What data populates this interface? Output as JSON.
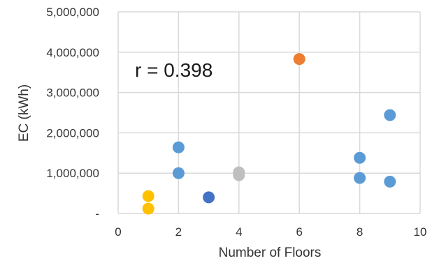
{
  "chart_data": {
    "type": "scatter",
    "title": "",
    "xlabel": "Number of Floors",
    "ylabel": "EC (kWh)",
    "xlim": [
      0,
      10
    ],
    "ylim": [
      0,
      5000000
    ],
    "x_ticks": [
      0,
      2,
      4,
      6,
      8,
      10
    ],
    "x_tick_labels": [
      "0",
      "2",
      "4",
      "6",
      "8",
      "10"
    ],
    "y_ticks": [
      0,
      1000000,
      2000000,
      3000000,
      4000000,
      5000000
    ],
    "y_tick_labels": [
      "-",
      "1,000,000",
      "2,000,000",
      "3,000,000",
      "4,000,000",
      "5,000,000"
    ],
    "grid": true,
    "annotation": "r = 0.398",
    "colors": {
      "yellow": "#FFC000",
      "blue": "#5B9BD5",
      "dark_blue": "#4472C4",
      "gray": "#BFBFBF",
      "orange": "#ED7D31"
    },
    "points": [
      {
        "x": 1,
        "y": 430000,
        "color": "#FFC000"
      },
      {
        "x": 1,
        "y": 120000,
        "color": "#FFC000"
      },
      {
        "x": 2,
        "y": 1640000,
        "color": "#5B9BD5"
      },
      {
        "x": 2,
        "y": 1000000,
        "color": "#5B9BD5"
      },
      {
        "x": 3,
        "y": 400000,
        "color": "#4472C4"
      },
      {
        "x": 4,
        "y": 1020000,
        "color": "#BFBFBF"
      },
      {
        "x": 4,
        "y": 950000,
        "color": "#BFBFBF"
      },
      {
        "x": 6,
        "y": 3830000,
        "color": "#ED7D31"
      },
      {
        "x": 8,
        "y": 1380000,
        "color": "#5B9BD5"
      },
      {
        "x": 8,
        "y": 880000,
        "color": "#5B9BD5"
      },
      {
        "x": 9,
        "y": 2440000,
        "color": "#5B9BD5"
      },
      {
        "x": 9,
        "y": 790000,
        "color": "#5B9BD5"
      }
    ]
  }
}
